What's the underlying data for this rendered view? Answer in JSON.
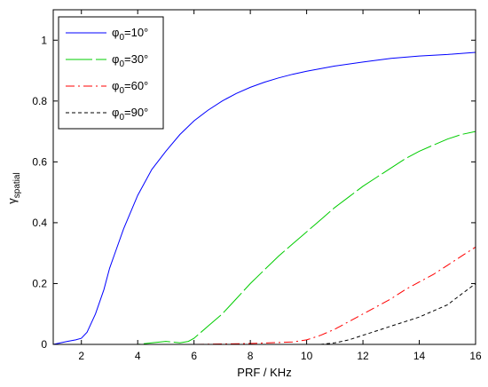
{
  "chart_data": {
    "type": "line",
    "xlabel": "PRF / KHz",
    "ylabel": "γ",
    "ylabel_sub": "spatial",
    "xlim": [
      1,
      16
    ],
    "ylim": [
      0,
      1.1
    ],
    "xticks": [
      2,
      4,
      6,
      8,
      10,
      12,
      14,
      16
    ],
    "yticks": [
      0,
      0.2,
      0.4,
      0.6,
      0.8,
      1
    ],
    "ytick_labels": [
      "0",
      "0.2",
      "0.4",
      "0.6",
      "0.8",
      "1"
    ],
    "grid": false,
    "legend_position": "top-left",
    "series": [
      {
        "name": "φ0=10°",
        "legend_main": "φ",
        "legend_sub": "0",
        "legend_rest": "=10°",
        "color": "#0000ff",
        "dash": "",
        "x": [
          1,
          1.5,
          1.8,
          2.0,
          2.2,
          2.5,
          2.8,
          3.0,
          3.5,
          4.0,
          4.5,
          5.0,
          5.5,
          6.0,
          6.5,
          7.0,
          7.5,
          8.0,
          8.5,
          9.0,
          9.5,
          10.0,
          11.0,
          12.0,
          13.0,
          14.0,
          15.0,
          16.0
        ],
        "y": [
          0.0,
          0.01,
          0.015,
          0.02,
          0.04,
          0.1,
          0.18,
          0.25,
          0.38,
          0.49,
          0.575,
          0.635,
          0.69,
          0.735,
          0.77,
          0.8,
          0.825,
          0.845,
          0.862,
          0.876,
          0.888,
          0.898,
          0.915,
          0.928,
          0.94,
          0.948,
          0.953,
          0.96
        ]
      },
      {
        "name": "φ0=30°",
        "legend_main": "φ",
        "legend_sub": "0",
        "legend_rest": "=30°",
        "color": "#00cc00",
        "dash": "30,4",
        "x": [
          1,
          2,
          3,
          4,
          4.5,
          5.0,
          5.5,
          5.8,
          6.0,
          6.5,
          7.0,
          7.5,
          8.0,
          8.5,
          9.0,
          9.5,
          10.0,
          10.5,
          11.0,
          11.5,
          12.0,
          12.5,
          13.0,
          13.5,
          14.0,
          14.5,
          15.0,
          15.5,
          16.0
        ],
        "y": [
          0.0,
          0.0,
          0.0,
          0.0,
          0.005,
          0.01,
          0.005,
          0.01,
          0.02,
          0.06,
          0.1,
          0.15,
          0.2,
          0.245,
          0.29,
          0.33,
          0.37,
          0.41,
          0.45,
          0.485,
          0.52,
          0.55,
          0.58,
          0.61,
          0.635,
          0.655,
          0.675,
          0.69,
          0.7
        ]
      },
      {
        "name": "φ0=60°",
        "legend_main": "φ",
        "legend_sub": "0",
        "legend_rest": "=60°",
        "color": "#ff0000",
        "dash": "10,4,2,4",
        "x": [
          1,
          2,
          4,
          6,
          8,
          9,
          9.5,
          10.0,
          10.5,
          11.0,
          11.5,
          12.0,
          12.5,
          13.0,
          13.5,
          14.0,
          14.5,
          15.0,
          15.5,
          16.0
        ],
        "y": [
          0.0,
          0.0,
          0.0,
          0.0,
          0.003,
          0.006,
          0.008,
          0.015,
          0.03,
          0.05,
          0.075,
          0.1,
          0.125,
          0.15,
          0.18,
          0.205,
          0.23,
          0.26,
          0.29,
          0.32
        ]
      },
      {
        "name": "φ0=90°",
        "legend_main": "φ",
        "legend_sub": "0",
        "legend_rest": "=90°",
        "color": "#000000",
        "dash": "4,3",
        "x": [
          1,
          2,
          4,
          6,
          8,
          10,
          10.5,
          11.0,
          11.5,
          12.0,
          12.5,
          13.0,
          13.5,
          14.0,
          14.5,
          15.0,
          15.5,
          16.0
        ],
        "y": [
          0.0,
          0.0,
          0.0,
          0.0,
          0.0,
          0.0,
          0.0,
          0.005,
          0.015,
          0.03,
          0.045,
          0.06,
          0.075,
          0.09,
          0.11,
          0.13,
          0.165,
          0.2
        ]
      }
    ]
  }
}
